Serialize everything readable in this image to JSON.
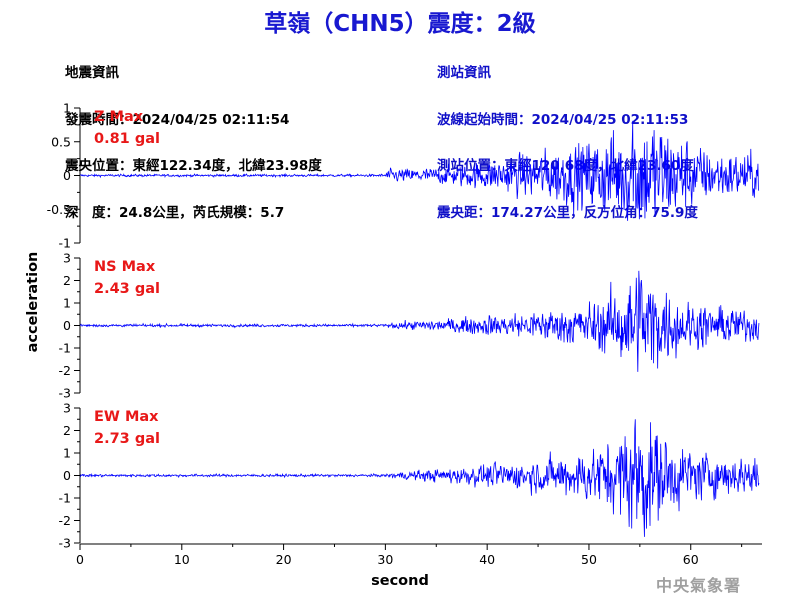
{
  "title": "草嶺（CHN5）震度：2級",
  "quake_info": {
    "heading": "地震資訊",
    "time": "發震時間：2024/04/25 02:11:54",
    "location": "震央位置：東經122.34度，北緯23.98度",
    "depth_magnitude": "深　度：24.8公里，芮氏規模：5.7"
  },
  "station_info": {
    "heading": "測站資訊",
    "wave_start": "波線起始時間：2024/04/25 02:11:53",
    "location": "測站位置：東經120.68度，北緯23.60度",
    "distance_azimuth": "震央距：174.27公里，反方位角：75.9度"
  },
  "agency": "中央氣象署",
  "colors": {
    "trace": "#0000ff",
    "max_label": "#e81818",
    "title": "#1818d0",
    "station_info": "#1010c8"
  },
  "chart_data": {
    "type": "line",
    "xlabel": "second",
    "ylabel": "acceleration",
    "xlim": [
      0,
      67
    ],
    "xticks": [
      "0",
      "10",
      "20",
      "30",
      "40",
      "50",
      "60"
    ],
    "grid": false,
    "duration_s": 66.7,
    "p_arrival_s": 29.8,
    "peak_time_s": 55.0,
    "panels": [
      {
        "component": "Z",
        "max_label": "Z Max",
        "max_value": "0.81 gal",
        "ylim": [
          -1,
          1
        ],
        "yticks": [
          "1",
          "0.5",
          "0",
          "-0.5",
          "-1"
        ],
        "peak": 0.81,
        "envelope": [
          [
            0,
            0.015
          ],
          [
            29.5,
            0.015
          ],
          [
            30.5,
            0.08
          ],
          [
            35,
            0.1
          ],
          [
            40,
            0.18
          ],
          [
            45,
            0.3
          ],
          [
            50,
            0.45
          ],
          [
            53,
            0.6
          ],
          [
            55,
            0.81
          ],
          [
            57,
            0.7
          ],
          [
            59,
            0.5
          ],
          [
            62,
            0.3
          ],
          [
            66.7,
            0.28
          ]
        ]
      },
      {
        "component": "NS",
        "max_label": "NS Max",
        "max_value": "2.43 gal",
        "ylim": [
          -3,
          3
        ],
        "yticks": [
          "3",
          "2",
          "1",
          "0",
          "-1",
          "-2",
          "-3"
        ],
        "peak": 2.43,
        "envelope": [
          [
            0,
            0.05
          ],
          [
            30,
            0.05
          ],
          [
            31,
            0.12
          ],
          [
            38,
            0.3
          ],
          [
            45,
            0.55
          ],
          [
            50,
            0.8
          ],
          [
            53,
            1.3
          ],
          [
            55,
            2.43
          ],
          [
            57,
            1.4
          ],
          [
            60,
            0.9
          ],
          [
            63,
            0.7
          ],
          [
            66.7,
            0.6
          ]
        ]
      },
      {
        "component": "EW",
        "max_label": "EW Max",
        "max_value": "2.73 gal",
        "ylim": [
          -3,
          3
        ],
        "yticks": [
          "3",
          "2",
          "1",
          "0",
          "-1",
          "-2",
          "-3"
        ],
        "peak": 2.73,
        "envelope": [
          [
            0,
            0.05
          ],
          [
            30,
            0.05
          ],
          [
            31,
            0.12
          ],
          [
            38,
            0.35
          ],
          [
            45,
            0.6
          ],
          [
            50,
            1.0
          ],
          [
            53,
            1.5
          ],
          [
            55,
            2.73
          ],
          [
            57,
            1.6
          ],
          [
            60,
            1.0
          ],
          [
            63,
            0.75
          ],
          [
            66.7,
            0.7
          ]
        ]
      }
    ]
  }
}
